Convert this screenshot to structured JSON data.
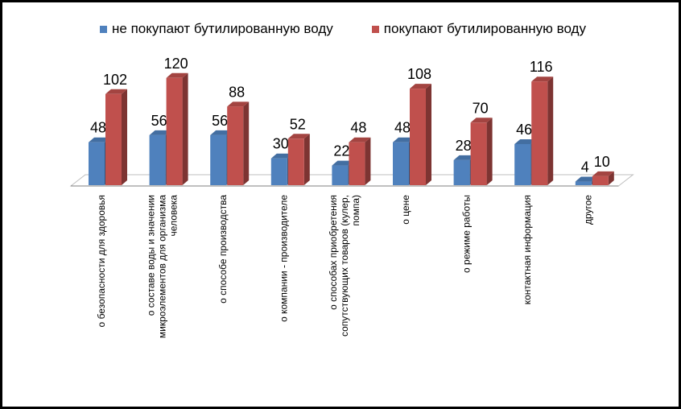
{
  "chart_data": {
    "type": "bar",
    "title": "",
    "xlabel": "",
    "ylabel": "",
    "ylim": [
      0,
      130
    ],
    "grid": false,
    "legend_position": "top",
    "categories": [
      [
        "о безопасности для здоровья"
      ],
      [
        "о составе воды и значении",
        "микроэлементов для организма",
        "человека"
      ],
      [
        "о способе производства"
      ],
      [
        "о компании - производителе"
      ],
      [
        "о способах приобретения",
        "сопутствующих товаров (кулер,",
        "помпа)"
      ],
      [
        "о цене"
      ],
      [
        "о режиме работы"
      ],
      [
        "контактная информация"
      ],
      [
        "другое"
      ]
    ],
    "series": [
      {
        "name": "не покупают бутилированную воду",
        "color": "#4f81bd",
        "values": [
          48,
          56,
          56,
          30,
          22,
          48,
          28,
          46,
          4
        ]
      },
      {
        "name": "покупают бутилированную воду",
        "color": "#c0504d",
        "values": [
          102,
          120,
          88,
          52,
          48,
          108,
          70,
          116,
          10
        ]
      }
    ]
  }
}
